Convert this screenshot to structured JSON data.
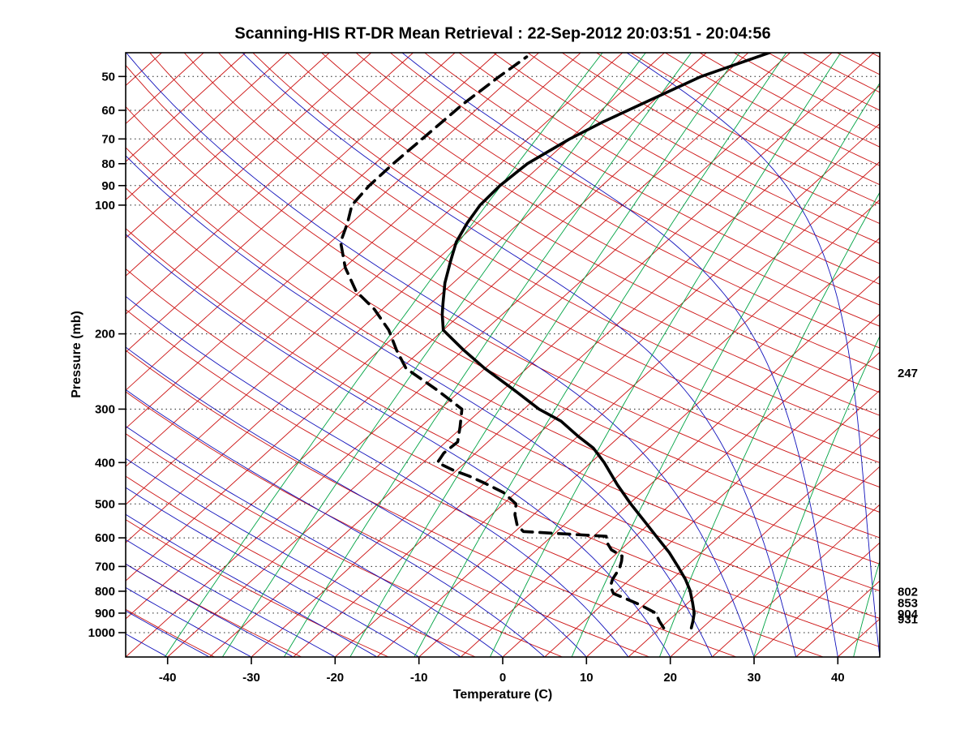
{
  "chart_data": {
    "type": "line",
    "subtype": "skew-t-log-p-sounding",
    "title": "Scanning-HIS RT-DR Mean Retrieval : 22-Sep-2012 20:03:51 - 20:04:56",
    "xlabel": "Temperature (C)",
    "ylabel": "Pressure (mb)",
    "x_ticks": [
      -40,
      -30,
      -20,
      -10,
      0,
      10,
      20,
      30,
      40
    ],
    "y_ticks": [
      50,
      60,
      70,
      80,
      90,
      100,
      200,
      300,
      400,
      500,
      600,
      700,
      800,
      900,
      1000
    ],
    "x_range": [
      -45,
      45
    ],
    "pressure_range": [
      44,
      1140
    ],
    "skew": 1.1,
    "grid": "dotted-horizontal-isobars",
    "legend_position": "none",
    "colors": {
      "isotherm": "#cc1111",
      "dry_adiabat": "#cc1111",
      "moist_adiabat": "#1111bb",
      "mixing_ratio": "#00a344",
      "gridline": "#222222",
      "profile": "#000000",
      "frame": "#000000"
    },
    "background_lines": {
      "isotherms_C": {
        "start": -125,
        "end": 45,
        "step": 5
      },
      "dry_adiabats_theta_K": {
        "start": 230,
        "end": 590,
        "step": 10
      },
      "moist_adiabats_surface_C": {
        "start": -40,
        "end": 45,
        "step": 5
      },
      "mixing_ratio_g_kg": [
        0.1,
        0.2,
        0.4,
        0.8,
        1.5,
        3,
        6,
        12,
        24,
        48
      ]
    },
    "series": [
      {
        "name": "temperature",
        "line": "solid",
        "points_p_T": [
          [
            975,
            18.7
          ],
          [
            940,
            18.0
          ],
          [
            900,
            17.1
          ],
          [
            850,
            15.5
          ],
          [
            796,
            13.6
          ],
          [
            750,
            11.6
          ],
          [
            707,
            9.4
          ],
          [
            650,
            6.2
          ],
          [
            601,
            2.9
          ],
          [
            550,
            -0.8
          ],
          [
            500,
            -4.8
          ],
          [
            450,
            -9.0
          ],
          [
            400,
            -13.4
          ],
          [
            370,
            -16.6
          ],
          [
            347,
            -20.0
          ],
          [
            320,
            -24.0
          ],
          [
            300,
            -28.2
          ],
          [
            270,
            -33.8
          ],
          [
            241,
            -40.0
          ],
          [
            218,
            -45.0
          ],
          [
            196,
            -50.0
          ],
          [
            180,
            -52.2
          ],
          [
            170,
            -53.5
          ],
          [
            152,
            -56.0
          ],
          [
            135,
            -58.2
          ],
          [
            122,
            -60.0
          ],
          [
            110,
            -61.2
          ],
          [
            100,
            -62.0
          ],
          [
            90,
            -62.2
          ],
          [
            80,
            -61.8
          ],
          [
            70,
            -60.0
          ],
          [
            64,
            -58.3
          ],
          [
            58,
            -56.0
          ],
          [
            50,
            -52.5
          ],
          [
            44,
            -47.5
          ]
        ]
      },
      {
        "name": "dewpoint",
        "line": "dashed",
        "points_p_T": [
          [
            975,
            15.4
          ],
          [
            940,
            14.0
          ],
          [
            900,
            12.5
          ],
          [
            860,
            9.5
          ],
          [
            830,
            6.8
          ],
          [
            810,
            4.9
          ],
          [
            780,
            3.6
          ],
          [
            750,
            2.9
          ],
          [
            707,
            2.3
          ],
          [
            680,
            1.6
          ],
          [
            662,
            1.0
          ],
          [
            640,
            -1.1
          ],
          [
            615,
            -2.6
          ],
          [
            595,
            -3.5
          ],
          [
            580,
            -14.0
          ],
          [
            560,
            -15.6
          ],
          [
            530,
            -17.2
          ],
          [
            500,
            -18.5
          ],
          [
            470,
            -21.5
          ],
          [
            448,
            -24.8
          ],
          [
            430,
            -27.8
          ],
          [
            417,
            -30.4
          ],
          [
            400,
            -33.3
          ],
          [
            380,
            -33.8
          ],
          [
            358,
            -33.6
          ],
          [
            330,
            -35.3
          ],
          [
            300,
            -37.4
          ],
          [
            270,
            -43.0
          ],
          [
            241,
            -49.4
          ],
          [
            218,
            -53.0
          ],
          [
            196,
            -56.5
          ],
          [
            175,
            -61.0
          ],
          [
            159,
            -65.5
          ],
          [
            140,
            -69.9
          ],
          [
            122,
            -73.8
          ],
          [
            110,
            -75.5
          ],
          [
            100,
            -77.3
          ],
          [
            90,
            -77.8
          ],
          [
            80,
            -77.8
          ],
          [
            70,
            -77.6
          ],
          [
            58,
            -77.3
          ],
          [
            50,
            -76.6
          ],
          [
            45,
            -75.9
          ]
        ]
      }
    ],
    "right_level_labels": [
      247,
      802,
      853,
      904,
      931
    ]
  }
}
